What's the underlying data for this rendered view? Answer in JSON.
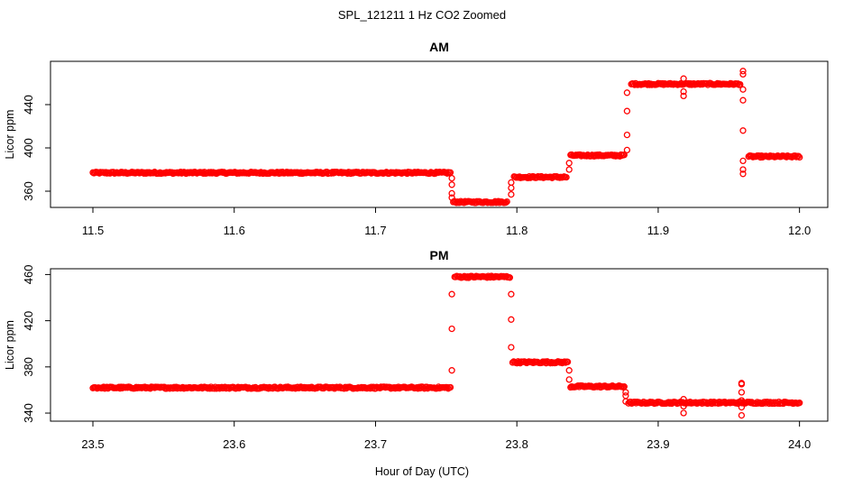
{
  "figure": {
    "title": "SPL_121211  1 Hz CO2 Zoomed",
    "xlabel": "Hour of Day (UTC)"
  },
  "chart_data": [
    {
      "type": "scatter",
      "title": "AM",
      "ylabel": "Licor ppm",
      "xlabel": "",
      "xlim": [
        11.47,
        12.02
      ],
      "ylim": [
        345,
        480
      ],
      "xticks": [
        11.5,
        11.6,
        11.7,
        11.8,
        11.9,
        12.0
      ],
      "xtick_labels": [
        "11.5",
        "11.6",
        "11.7",
        "11.8",
        "11.9",
        "12.0"
      ],
      "yticks": [
        360,
        400,
        440
      ],
      "ytick_labels": [
        "360",
        "400",
        "440"
      ],
      "color": "#ff0000",
      "marker": "open-circle",
      "series": [
        {
          "segments": [
            {
              "x_start": 11.5,
              "x_end": 11.753,
              "y": 377
            },
            {
              "x_start": 11.755,
              "x_end": 11.793,
              "y": 350
            },
            {
              "x_start": 11.798,
              "x_end": 11.835,
              "y": 373
            },
            {
              "x_start": 11.838,
              "x_end": 11.876,
              "y": 393
            },
            {
              "x_start": 11.881,
              "x_end": 11.958,
              "y": 459
            },
            {
              "x_start": 11.964,
              "x_end": 12.0,
              "y": 392
            }
          ],
          "transitions": [
            {
              "x": 11.754,
              "y": [
                372,
                366,
                358,
                354
              ]
            },
            {
              "x": 11.796,
              "y": [
                357,
                363,
                368
              ]
            },
            {
              "x": 11.837,
              "y": [
                380,
                386
              ]
            },
            {
              "x": 11.878,
              "y": [
                398,
                412,
                434,
                451
              ]
            },
            {
              "x": 11.918,
              "y": [
                448,
                452,
                464
              ]
            },
            {
              "x": 11.96,
              "y": [
                471,
                468,
                454,
                444,
                416,
                388,
                380,
                376
              ]
            }
          ]
        }
      ]
    },
    {
      "type": "scatter",
      "title": "PM",
      "ylabel": "Licor ppm",
      "xlabel": "",
      "xlim": [
        23.47,
        24.02
      ],
      "ylim": [
        333,
        465
      ],
      "xticks": [
        23.5,
        23.6,
        23.7,
        23.8,
        23.9,
        24.0
      ],
      "xtick_labels": [
        "23.5",
        "23.6",
        "23.7",
        "23.8",
        "23.9",
        "24.0"
      ],
      "yticks": [
        340,
        380,
        420,
        460
      ],
      "ytick_labels": [
        "340",
        "380",
        "420",
        "460"
      ],
      "color": "#ff0000",
      "marker": "open-circle",
      "series": [
        {
          "segments": [
            {
              "x_start": 23.5,
              "x_end": 23.753,
              "y": 362
            },
            {
              "x_start": 23.756,
              "x_end": 23.795,
              "y": 458
            },
            {
              "x_start": 23.797,
              "x_end": 23.836,
              "y": 384
            },
            {
              "x_start": 23.838,
              "x_end": 23.876,
              "y": 363
            },
            {
              "x_start": 23.879,
              "x_end": 24.0,
              "y": 349
            }
          ],
          "transitions": [
            {
              "x": 23.754,
              "y": [
                377,
                413,
                443
              ]
            },
            {
              "x": 23.796,
              "y": [
                397,
                421,
                443
              ]
            },
            {
              "x": 23.837,
              "y": [
                369,
                377
              ]
            },
            {
              "x": 23.877,
              "y": [
                350,
                355,
                358
              ]
            },
            {
              "x": 23.918,
              "y": [
                340,
                346,
                352
              ]
            },
            {
              "x": 23.959,
              "y": [
                338,
                345,
                351,
                358,
                365,
                366
              ]
            }
          ]
        }
      ]
    }
  ]
}
